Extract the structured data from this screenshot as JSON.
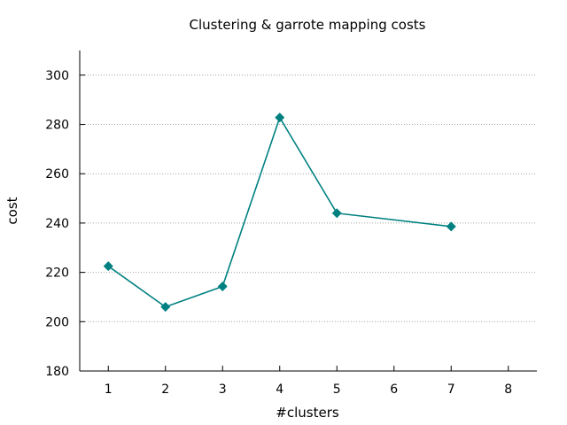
{
  "chart_data": {
    "type": "line",
    "title": "Clustering & garrote mapping costs",
    "xlabel": "#clusters",
    "ylabel": "cost",
    "x_ticks": [
      "1",
      "2",
      "3",
      "4",
      "5",
      "6",
      "7",
      "8"
    ],
    "y_ticks": [
      "180",
      "200",
      "220",
      "240",
      "260",
      "280",
      "300"
    ],
    "xlim": [
      0.5,
      8.5
    ],
    "ylim": [
      180,
      310
    ],
    "grid": "horizontal dotted",
    "series": [
      {
        "color": "#008080",
        "marker": "diamond",
        "points": [
          {
            "x": 1,
            "y": 222.5
          },
          {
            "x": 2,
            "y": 206
          },
          {
            "x": 3,
            "y": 214.3
          },
          {
            "x": 4,
            "y": 282.8
          },
          {
            "x": 5,
            "y": 244
          },
          {
            "x": 7,
            "y": 238.6
          }
        ]
      }
    ]
  }
}
